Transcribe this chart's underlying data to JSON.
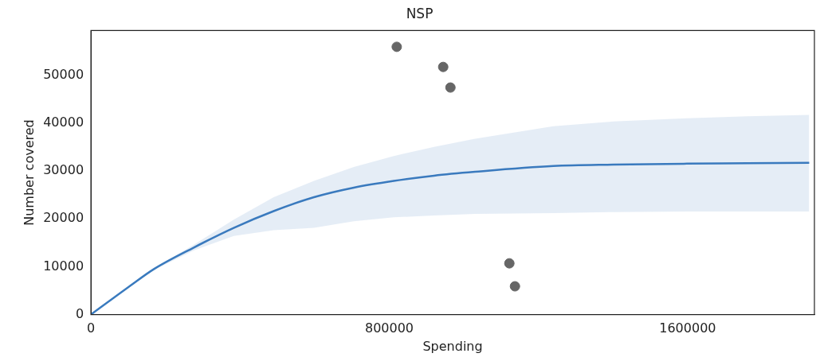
{
  "chart_data": {
    "type": "scatter",
    "title": "NSP",
    "xlabel": "Spending",
    "ylabel": "Number covered",
    "xlim": [
      0,
      1940000
    ],
    "ylim": [
      0,
      59300
    ],
    "xticks": [
      0,
      800000,
      1600000
    ],
    "yticks": [
      0,
      10000,
      20000,
      30000,
      40000,
      50000
    ],
    "grid": false,
    "legend": false,
    "series": [
      {
        "type": "scatter",
        "color": "#666666",
        "marker": "circle",
        "x": [
          820000,
          944600,
          964000,
          1122000,
          1137000
        ],
        "values": [
          55900,
          51700,
          47400,
          10700,
          5900
        ]
      },
      {
        "type": "line",
        "color": "#3a7bbf",
        "marker": "none",
        "x": [
          0,
          100000,
          169000,
          276000,
          383000,
          490000,
          598000,
          705000,
          812000,
          920000,
          1030000,
          1240000,
          1400000,
          1598000,
          1760000,
          1926000
        ],
        "values": [
          0,
          5700,
          9500,
          14000,
          18100,
          21600,
          24500,
          26500,
          27900,
          29000,
          29800,
          31000,
          31300,
          31500,
          31600,
          31700
        ],
        "upper": [
          0,
          5800,
          9700,
          14600,
          19800,
          24500,
          27900,
          30800,
          33100,
          35000,
          36700,
          39300,
          40300,
          41000,
          41400,
          41700
        ],
        "lower": [
          0,
          5600,
          9300,
          13400,
          16400,
          17600,
          18100,
          19500,
          20300,
          20700,
          21000,
          21200,
          21400,
          21500,
          21500,
          21500
        ]
      }
    ]
  }
}
